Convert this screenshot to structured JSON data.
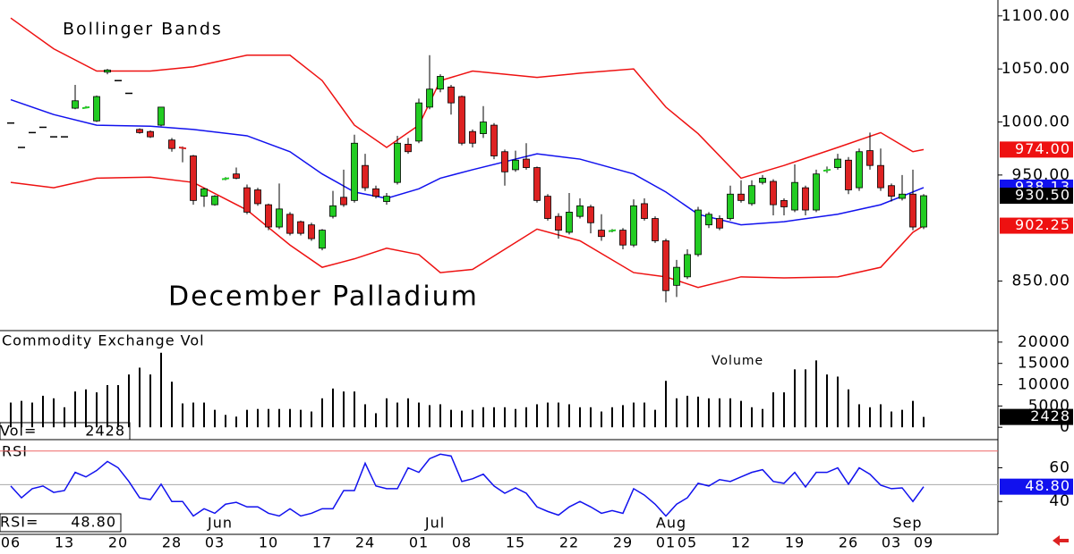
{
  "chart_data": [
    {
      "type": "candlestick",
      "title": "December Palladium",
      "subtitle": "Bollinger Bands",
      "categories": [
        "06",
        null,
        null,
        null,
        null,
        "13",
        null,
        null,
        null,
        null,
        "20",
        null,
        null,
        null,
        null,
        "28",
        null,
        null,
        null,
        "03",
        null,
        null,
        null,
        null,
        "10",
        null,
        null,
        null,
        null,
        "17",
        null,
        null,
        null,
        "24",
        null,
        null,
        null,
        null,
        "01",
        null,
        null,
        null,
        "08",
        null,
        null,
        null,
        null,
        "15",
        null,
        null,
        null,
        null,
        "22",
        null,
        null,
        null,
        null,
        "29",
        null,
        null,
        null,
        "01",
        null,
        "05",
        null,
        null,
        null,
        null,
        "12",
        null,
        null,
        null,
        null,
        "19",
        null,
        null,
        null,
        null,
        "26",
        null,
        null,
        null,
        "03",
        null,
        null,
        "09"
      ],
      "months": [
        null,
        null,
        null,
        null,
        null,
        null,
        null,
        null,
        null,
        null,
        null,
        null,
        null,
        null,
        null,
        null,
        null,
        null,
        null,
        "Jun",
        null,
        null,
        null,
        null,
        null,
        null,
        null,
        null,
        null,
        null,
        null,
        null,
        null,
        null,
        null,
        null,
        null,
        null,
        null,
        "Jul",
        null,
        null,
        null,
        null,
        null,
        null,
        null,
        null,
        null,
        null,
        null,
        null,
        null,
        null,
        null,
        null,
        null,
        null,
        null,
        null,
        null,
        "Aug",
        null,
        null,
        null,
        null,
        null,
        null,
        null,
        null,
        null,
        null,
        null,
        null,
        null,
        null,
        null,
        null,
        null,
        null,
        null,
        null,
        null,
        "Sep",
        null,
        null
      ],
      "ohlc": [
        [
          999,
          999,
          999,
          999
        ],
        [
          976,
          976,
          976,
          976
        ],
        [
          990,
          990,
          990,
          990
        ],
        [
          995,
          995,
          995,
          995
        ],
        [
          986,
          986,
          986,
          986
        ],
        [
          986,
          986,
          986,
          986
        ],
        [
          1013,
          1035,
          1012,
          1020
        ],
        [
          1013,
          1015,
          1013,
          1014
        ],
        [
          1001,
          1025,
          1000,
          1024
        ],
        [
          1047,
          1050,
          1045,
          1049
        ],
        [
          1039,
          1039,
          1039,
          1039
        ],
        [
          1027,
          1027,
          1027,
          1027
        ],
        [
          993,
          994,
          989,
          990
        ],
        [
          991,
          992,
          985,
          986
        ],
        [
          997,
          1014,
          996,
          1014
        ],
        [
          983,
          985,
          972,
          975
        ],
        [
          976,
          977,
          962,
          975
        ],
        [
          968,
          969,
          922,
          926
        ],
        [
          930,
          938,
          920,
          937
        ],
        [
          922,
          931,
          921,
          930
        ],
        [
          946,
          948,
          945,
          947
        ],
        [
          951,
          957,
          946,
          947
        ],
        [
          938,
          941,
          913,
          915
        ],
        [
          936,
          938,
          921,
          923
        ],
        [
          922,
          923,
          898,
          901
        ],
        [
          901,
          942,
          899,
          918
        ],
        [
          913,
          915,
          893,
          895
        ],
        [
          906,
          907,
          893,
          895
        ],
        [
          903,
          905,
          888,
          890
        ],
        [
          881,
          899,
          879,
          898
        ],
        [
          911,
          935,
          909,
          921
        ],
        [
          929,
          955,
          920,
          922
        ],
        [
          926,
          988,
          924,
          980
        ],
        [
          959,
          970,
          935,
          938
        ],
        [
          937,
          940,
          928,
          930
        ],
        [
          925,
          933,
          922,
          930
        ],
        [
          943,
          987,
          941,
          980
        ],
        [
          979,
          985,
          970,
          972
        ],
        [
          982,
          1022,
          980,
          1018
        ],
        [
          1014,
          1063,
          1012,
          1031
        ],
        [
          1031,
          1045,
          1028,
          1043
        ],
        [
          1033,
          1035,
          1007,
          1018
        ],
        [
          1024,
          1025,
          978,
          980
        ],
        [
          991,
          993,
          976,
          980
        ],
        [
          989,
          1015,
          985,
          1000
        ],
        [
          997,
          999,
          965,
          968
        ],
        [
          972,
          974,
          940,
          953
        ],
        [
          955,
          973,
          953,
          964
        ],
        [
          965,
          980,
          955,
          957
        ],
        [
          957,
          958,
          924,
          926
        ],
        [
          930,
          932,
          907,
          909
        ],
        [
          911,
          914,
          890,
          898
        ],
        [
          896,
          933,
          894,
          915
        ],
        [
          911,
          928,
          909,
          921
        ],
        [
          920,
          922,
          895,
          905
        ],
        [
          898,
          913,
          888,
          892
        ],
        [
          897,
          899,
          896,
          898
        ],
        [
          898,
          900,
          880,
          884
        ],
        [
          884,
          927,
          882,
          921
        ],
        [
          923,
          928,
          907,
          909
        ],
        [
          909,
          911,
          886,
          888
        ],
        [
          888,
          890,
          830,
          841
        ],
        [
          846,
          870,
          835,
          863
        ],
        [
          854,
          880,
          852,
          875
        ],
        [
          875,
          920,
          873,
          917
        ],
        [
          903,
          915,
          900,
          913
        ],
        [
          909,
          912,
          898,
          900
        ],
        [
          909,
          940,
          907,
          932
        ],
        [
          932,
          945,
          924,
          926
        ],
        [
          923,
          945,
          921,
          940
        ],
        [
          943,
          950,
          941,
          947
        ],
        [
          944,
          946,
          912,
          922
        ],
        [
          926,
          928,
          912,
          920
        ],
        [
          917,
          960,
          915,
          943
        ],
        [
          938,
          940,
          912,
          917
        ],
        [
          917,
          955,
          915,
          951
        ],
        [
          954,
          958,
          952,
          955
        ],
        [
          957,
          970,
          955,
          965
        ],
        [
          964,
          967,
          932,
          936
        ],
        [
          938,
          975,
          935,
          972
        ],
        [
          973,
          990,
          955,
          959
        ],
        [
          959,
          975,
          935,
          938
        ],
        [
          940,
          942,
          925,
          930
        ],
        [
          928,
          950,
          926,
          932
        ],
        [
          932,
          955,
          898,
          901
        ],
        [
          901,
          932,
          899,
          930.5
        ]
      ],
      "last_label": "930.50",
      "up_color": "#22cc22",
      "down_color": "#dd2222",
      "flat_color": "#000000",
      "bands": [
        {
          "color": "#ee1111",
          "x": [
            0,
            4,
            8,
            13,
            17,
            22,
            26,
            29,
            32,
            35,
            38,
            40,
            43,
            49,
            53,
            58,
            61,
            64,
            68,
            72,
            77,
            81,
            84,
            85
          ],
          "values": [
            1098,
            1069,
            1048,
            1048,
            1052,
            1063,
            1063,
            1039,
            997,
            976,
            997,
            1039,
            1048,
            1042,
            1046,
            1050,
            1014,
            989,
            947,
            959,
            976,
            990,
            972,
            974
          ],
          "value_label": "974.00"
        },
        {
          "color": "#1111ee",
          "x": [
            0,
            4,
            8,
            13,
            17,
            22,
            26,
            29,
            32,
            35,
            38,
            40,
            43,
            49,
            53,
            58,
            61,
            64,
            68,
            72,
            77,
            81,
            84,
            85
          ],
          "values": [
            1021,
            1007,
            997,
            996,
            993,
            987,
            972,
            951,
            934,
            928,
            937,
            947,
            955,
            970,
            965,
            951,
            934,
            913,
            903,
            906,
            913,
            922,
            934,
            938.13
          ],
          "value_label": "938.13"
        },
        {
          "color": "#ee1111",
          "x": [
            0,
            4,
            8,
            13,
            17,
            22,
            26,
            29,
            32,
            35,
            38,
            40,
            43,
            49,
            53,
            58,
            61,
            64,
            68,
            72,
            77,
            81,
            84,
            85
          ],
          "values": [
            943,
            938,
            947,
            948,
            943,
            917,
            884,
            863,
            871,
            881,
            875,
            858,
            861,
            899,
            888,
            858,
            854,
            844,
            854,
            853,
            854,
            863,
            896,
            902.25
          ],
          "value_label": "902.25"
        }
      ],
      "ylim": [
        805,
        1115
      ],
      "yticks": [
        {
          "value": 850,
          "label": "850.00"
        },
        {
          "value": 950,
          "label": "950.00"
        },
        {
          "value": 1000,
          "label": "1000.00"
        },
        {
          "value": 1050,
          "label": "1050.00"
        },
        {
          "value": 1100,
          "label": "1100.00"
        }
      ]
    },
    {
      "type": "bar",
      "title": "Commodity Exchange Vol",
      "label": "Volume",
      "value_prefix": "Vol=",
      "color": "#000000",
      "values": [
        5800,
        6200,
        5800,
        7400,
        6800,
        4700,
        8400,
        8900,
        8200,
        9900,
        9900,
        12400,
        14000,
        12400,
        17500,
        10700,
        5600,
        5800,
        5800,
        4100,
        2900,
        2500,
        4100,
        4300,
        4300,
        4300,
        4300,
        4100,
        3700,
        6800,
        9100,
        8400,
        8400,
        5400,
        3300,
        6800,
        5800,
        6800,
        5800,
        5200,
        5400,
        4100,
        3900,
        4100,
        4700,
        4700,
        4700,
        4300,
        4700,
        5400,
        5800,
        5800,
        5400,
        4700,
        4700,
        3700,
        4700,
        5200,
        5800,
        5800,
        4100,
        10900,
        6800,
        7400,
        7200,
        6800,
        6800,
        6800,
        6200,
        4700,
        4300,
        8200,
        8200,
        13600,
        13600,
        15700,
        12400,
        11900,
        8900,
        5400,
        4700,
        5400,
        3700,
        4100,
        6200,
        2428
      ],
      "ylim": [
        -2900,
        22700
      ],
      "yticks": [
        0,
        5000,
        10000,
        15000,
        20000
      ]
    },
    {
      "type": "line",
      "title": "RSI",
      "value_prefix": "RSI=",
      "color": "#1111ee",
      "values": [
        49.2,
        42.2,
        47.6,
        49.2,
        45.4,
        46.5,
        57.3,
        54.6,
        58.4,
        63.8,
        60.0,
        51.9,
        42.2,
        41.1,
        50.3,
        40.0,
        40.0,
        31.4,
        35.7,
        33.0,
        38.4,
        39.5,
        36.8,
        36.8,
        33.0,
        31.4,
        35.7,
        31.4,
        33.0,
        35.7,
        35.7,
        46.5,
        46.5,
        62.7,
        49.2,
        47.6,
        47.6,
        60.0,
        57.3,
        65.4,
        68.1,
        67.0,
        51.9,
        53.5,
        56.2,
        49.2,
        44.9,
        48.1,
        44.9,
        36.8,
        34.1,
        31.9,
        36.8,
        40.0,
        36.8,
        33.0,
        34.6,
        33.0,
        47.6,
        43.8,
        38.4,
        31.4,
        38.4,
        42.2,
        50.8,
        49.2,
        53.0,
        51.9,
        54.6,
        57.3,
        58.9,
        51.9,
        50.8,
        57.3,
        48.6,
        57.3,
        57.3,
        60.0,
        50.3,
        60.0,
        56.2,
        49.7,
        47.6,
        48.1,
        40.0,
        48.8
      ],
      "value_label": "48.80",
      "ref_lines": [
        {
          "value": 70,
          "color": "#ee6666"
        },
        {
          "value": 50,
          "color": "#aaaaaa"
        }
      ],
      "ylim": [
        20.5,
        76.2
      ],
      "yticks": [
        40,
        60
      ]
    }
  ]
}
